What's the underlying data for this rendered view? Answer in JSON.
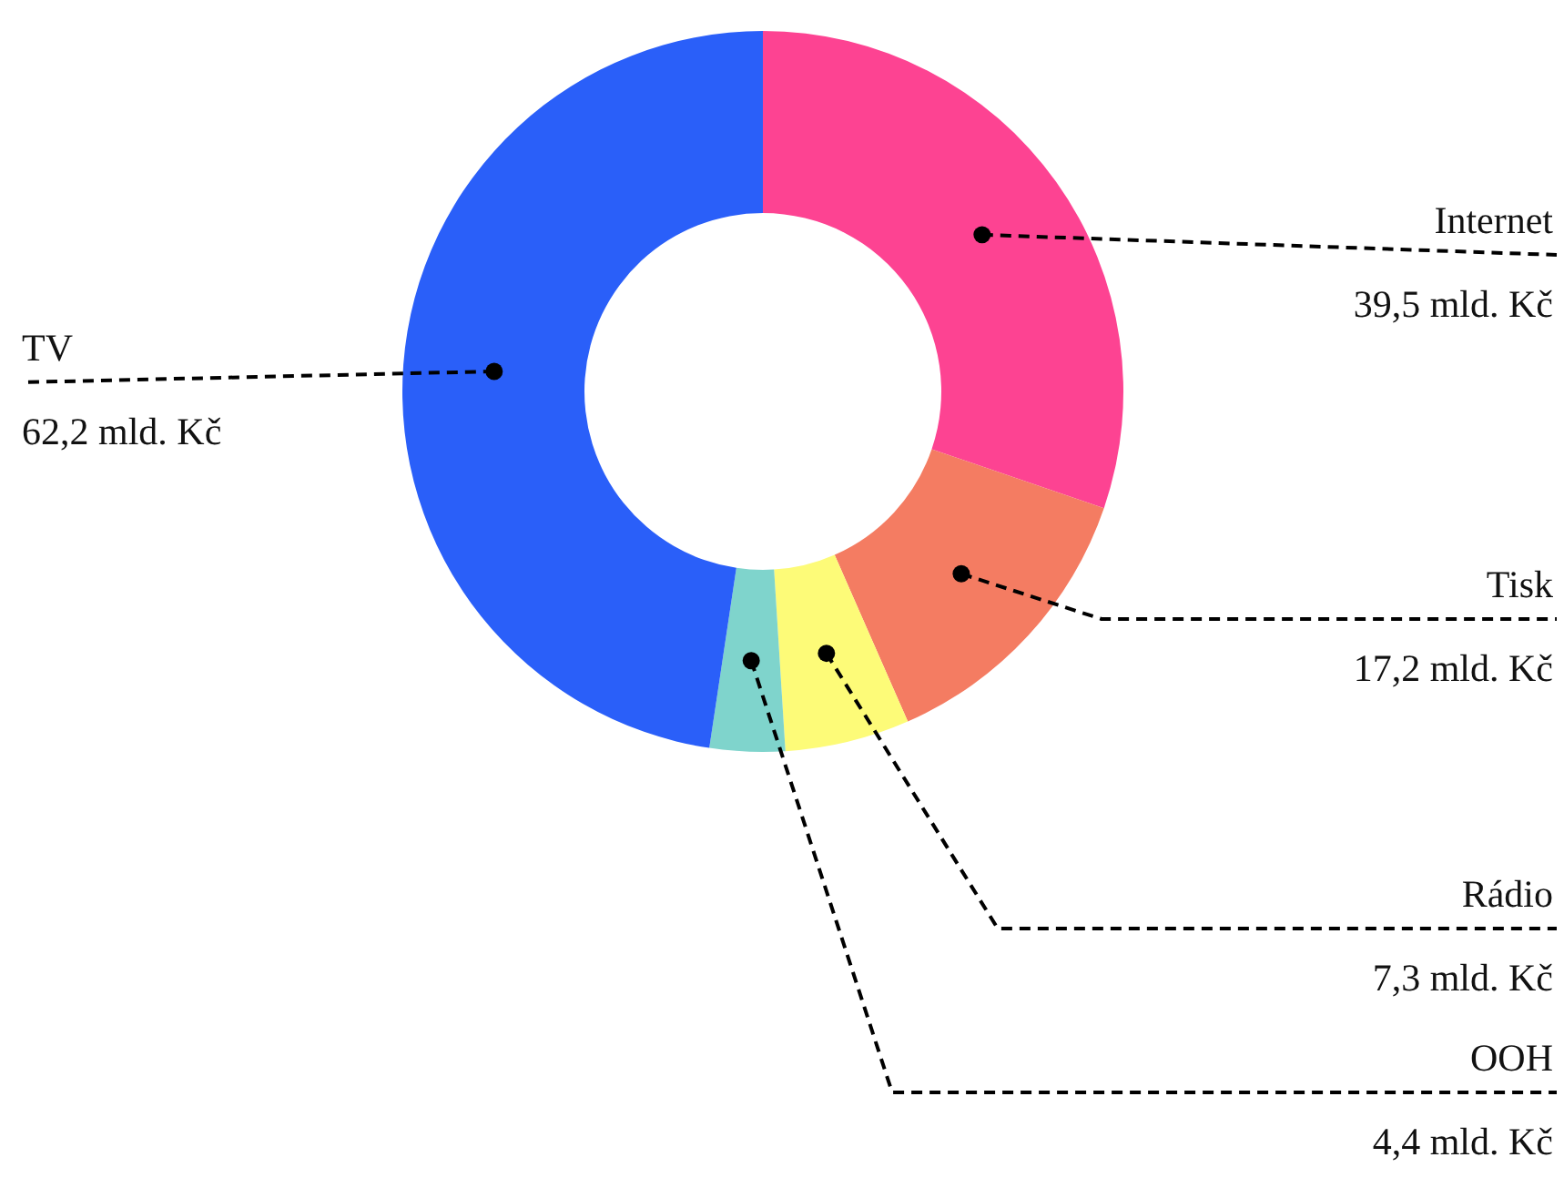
{
  "chart_data": {
    "type": "donut",
    "categories": [
      "Internet",
      "Tisk",
      "Rádio",
      "OOH",
      "TV"
    ],
    "values": [
      39.5,
      17.2,
      7.3,
      4.4,
      62.2
    ],
    "colors": [
      "#fd4392",
      "#f47c62",
      "#fdfb78",
      "#7fd4cc",
      "#2a5ff9"
    ],
    "value_labels": [
      "39,5 mld. Kč",
      "17,2 mld. Kč",
      "7,3 mld. Kč",
      "4,4 mld. Kč",
      "62,2 mld. Kč"
    ]
  }
}
